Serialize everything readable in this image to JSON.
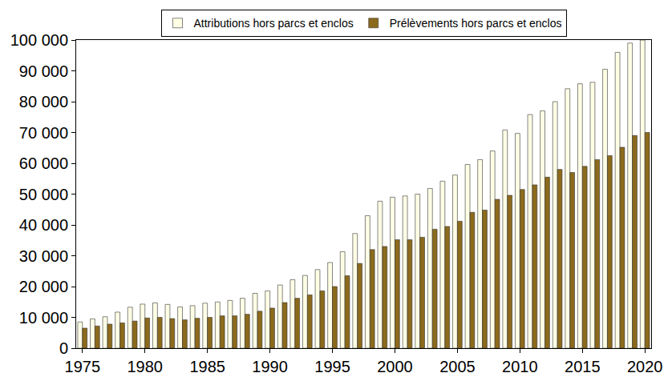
{
  "chart_data": {
    "type": "bar",
    "x": [
      1975,
      1976,
      1977,
      1978,
      1979,
      1980,
      1981,
      1982,
      1983,
      1984,
      1985,
      1986,
      1987,
      1988,
      1989,
      1990,
      1991,
      1992,
      1993,
      1994,
      1995,
      1996,
      1997,
      1998,
      1999,
      2000,
      2001,
      2002,
      2003,
      2004,
      2005,
      2006,
      2007,
      2008,
      2009,
      2010,
      2011,
      2012,
      2013,
      2014,
      2015,
      2016,
      2017,
      2018,
      2019,
      2020
    ],
    "series": [
      {
        "name": "Attributions hors parcs et enclos",
        "color": "#ffffe6",
        "values": [
          8500,
          9500,
          10200,
          11700,
          13300,
          14300,
          14700,
          14200,
          13400,
          13800,
          14600,
          15000,
          15500,
          16200,
          17800,
          18600,
          20500,
          22200,
          23600,
          25500,
          27800,
          31300,
          37200,
          43000,
          47700,
          49000,
          49400,
          50000,
          51800,
          54200,
          56200,
          59600,
          61200,
          64000,
          70800,
          69700,
          75800,
          77000,
          80000,
          84200,
          85800,
          86300,
          90500,
          96000,
          99000,
          100000
        ]
      },
      {
        "name": "Prélèvements hors parcs et enclos",
        "color": "#8c6a1c",
        "values": [
          6500,
          7200,
          7800,
          8200,
          8800,
          9800,
          10000,
          9600,
          9200,
          9700,
          10000,
          10500,
          10500,
          11000,
          12000,
          13000,
          14800,
          16200,
          17300,
          18600,
          20000,
          23500,
          27500,
          32000,
          33000,
          35200,
          35200,
          36000,
          38600,
          39500,
          41200,
          44100,
          44800,
          48300,
          49600,
          51500,
          53000,
          55500,
          58000,
          57000,
          59000,
          61200,
          62500,
          65200,
          69000,
          70000
        ]
      }
    ],
    "xlim": [
      1974.5,
      2020.5
    ],
    "xticks": [
      1975,
      1980,
      1985,
      1990,
      1995,
      2000,
      2005,
      2010,
      2015,
      2020
    ],
    "ylim": [
      0,
      100000
    ],
    "yticks": [
      0,
      {
        "value": 10000,
        "label": "10 000"
      },
      {
        "value": 20000,
        "label": "20 000"
      },
      {
        "value": 30000,
        "label": "30 000"
      },
      {
        "value": 40000,
        "label": "40 000"
      },
      {
        "value": 50000,
        "label": "50 000"
      },
      {
        "value": 60000,
        "label": "60 000"
      },
      {
        "value": 70000,
        "label": "70 000"
      },
      {
        "value": 80000,
        "label": "80 000"
      },
      {
        "value": 90000,
        "label": "90 000"
      },
      {
        "value": 100000,
        "label": "100 000"
      }
    ],
    "grid": false,
    "legend": "top"
  }
}
